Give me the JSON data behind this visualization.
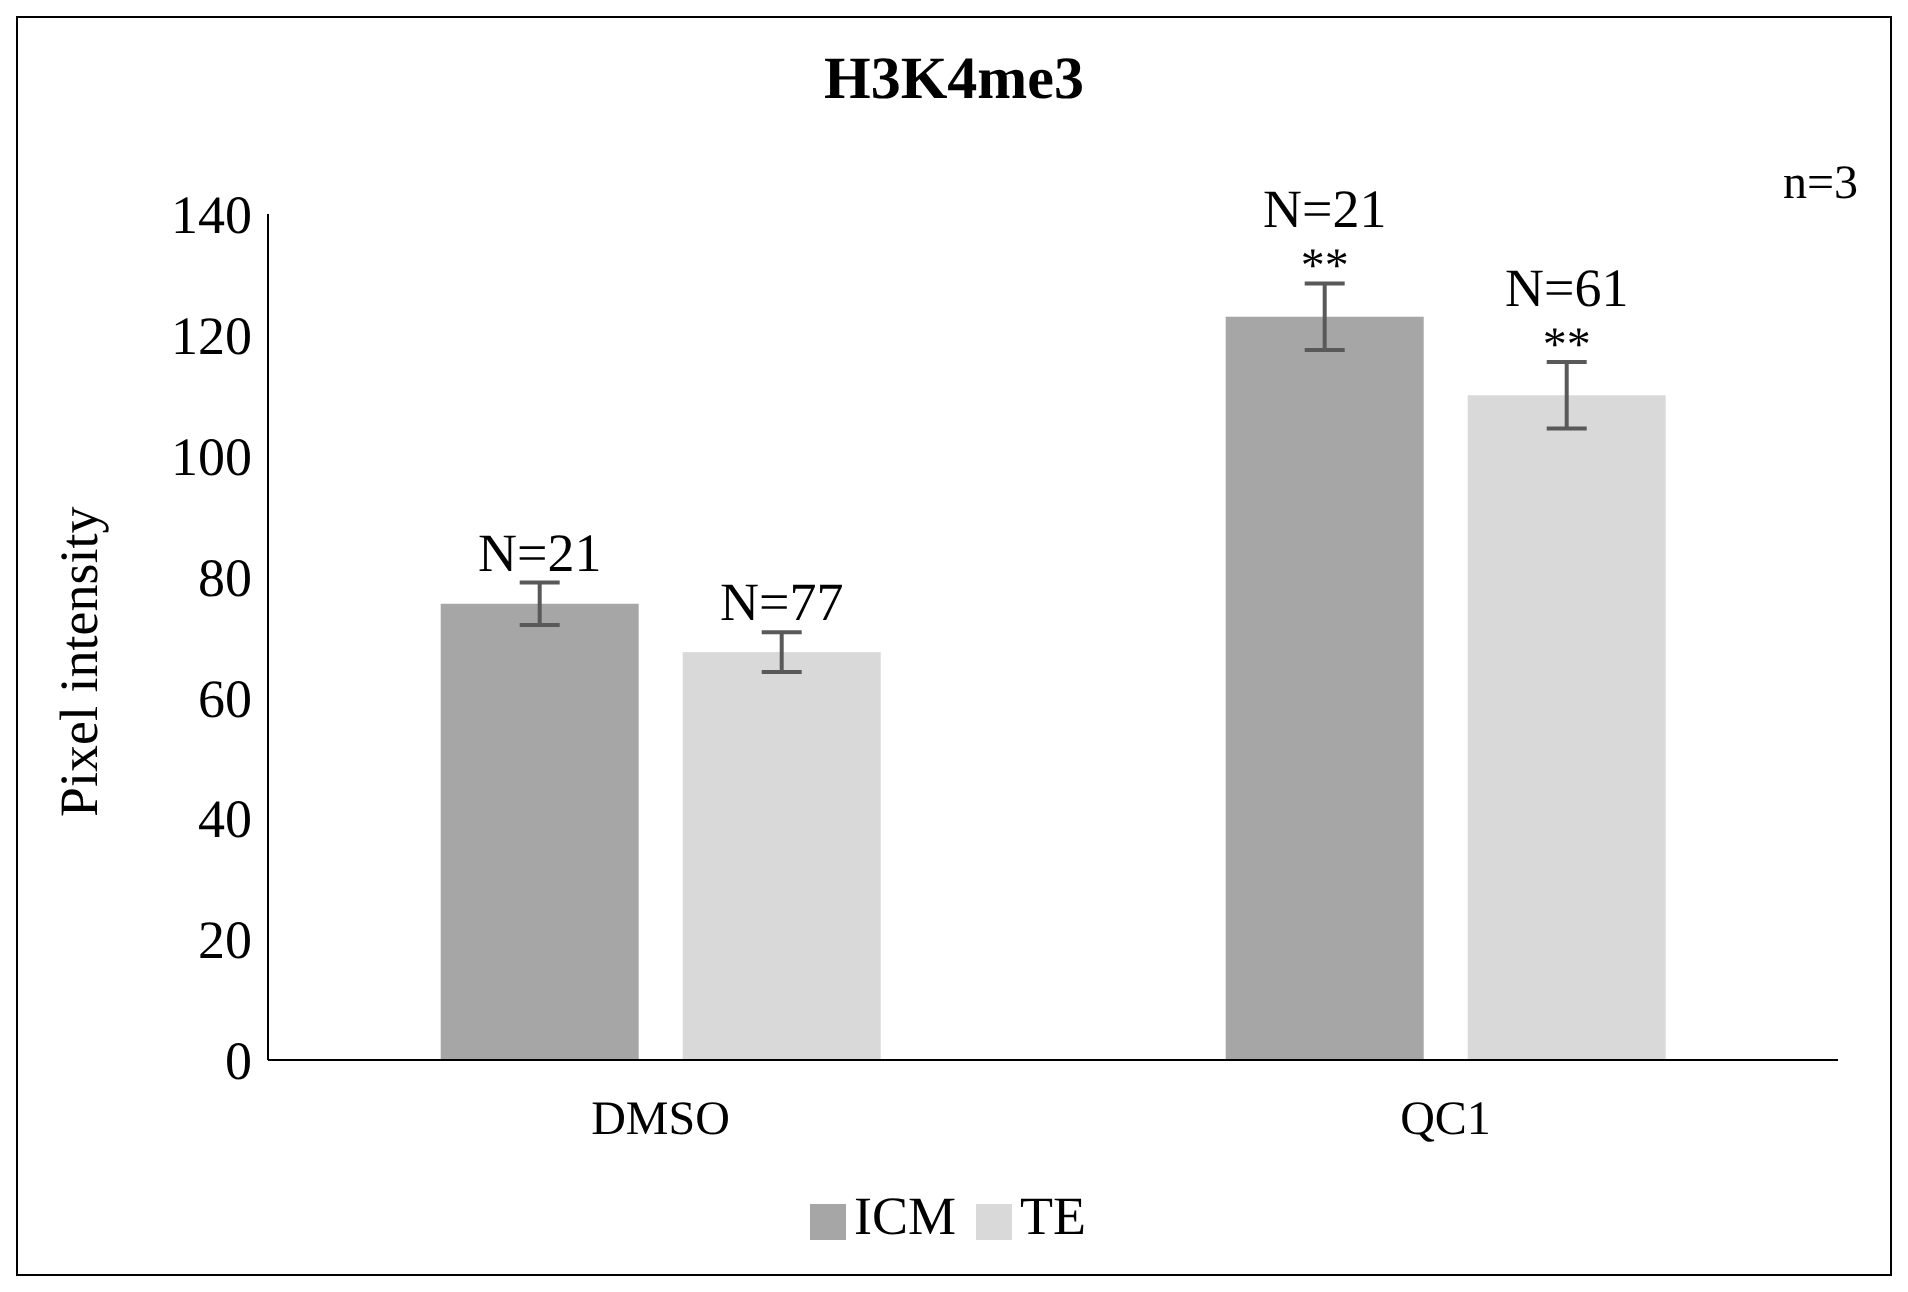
{
  "chart_data": {
    "type": "bar",
    "title": "H3K4me3",
    "ylabel": "Pixel intensity",
    "categories": [
      "DMSO",
      "QC1"
    ],
    "series": [
      {
        "name": "ICM",
        "color": "#a6a6a6",
        "values": [
          75.5,
          123
        ],
        "errors": [
          3.5,
          5.5
        ]
      },
      {
        "name": "TE",
        "color": "#d9d9d9",
        "values": [
          67.5,
          110
        ],
        "errors": [
          3.3,
          5.5
        ]
      }
    ],
    "annotations": [
      "N=21",
      "N=77",
      "**",
      "N=21",
      "**",
      "N=61",
      "n=3"
    ],
    "ylim": [
      0,
      140
    ],
    "yticks": [
      0,
      20,
      40,
      60,
      80,
      100,
      120,
      140
    ],
    "grid": false,
    "legend": "bottom"
  }
}
